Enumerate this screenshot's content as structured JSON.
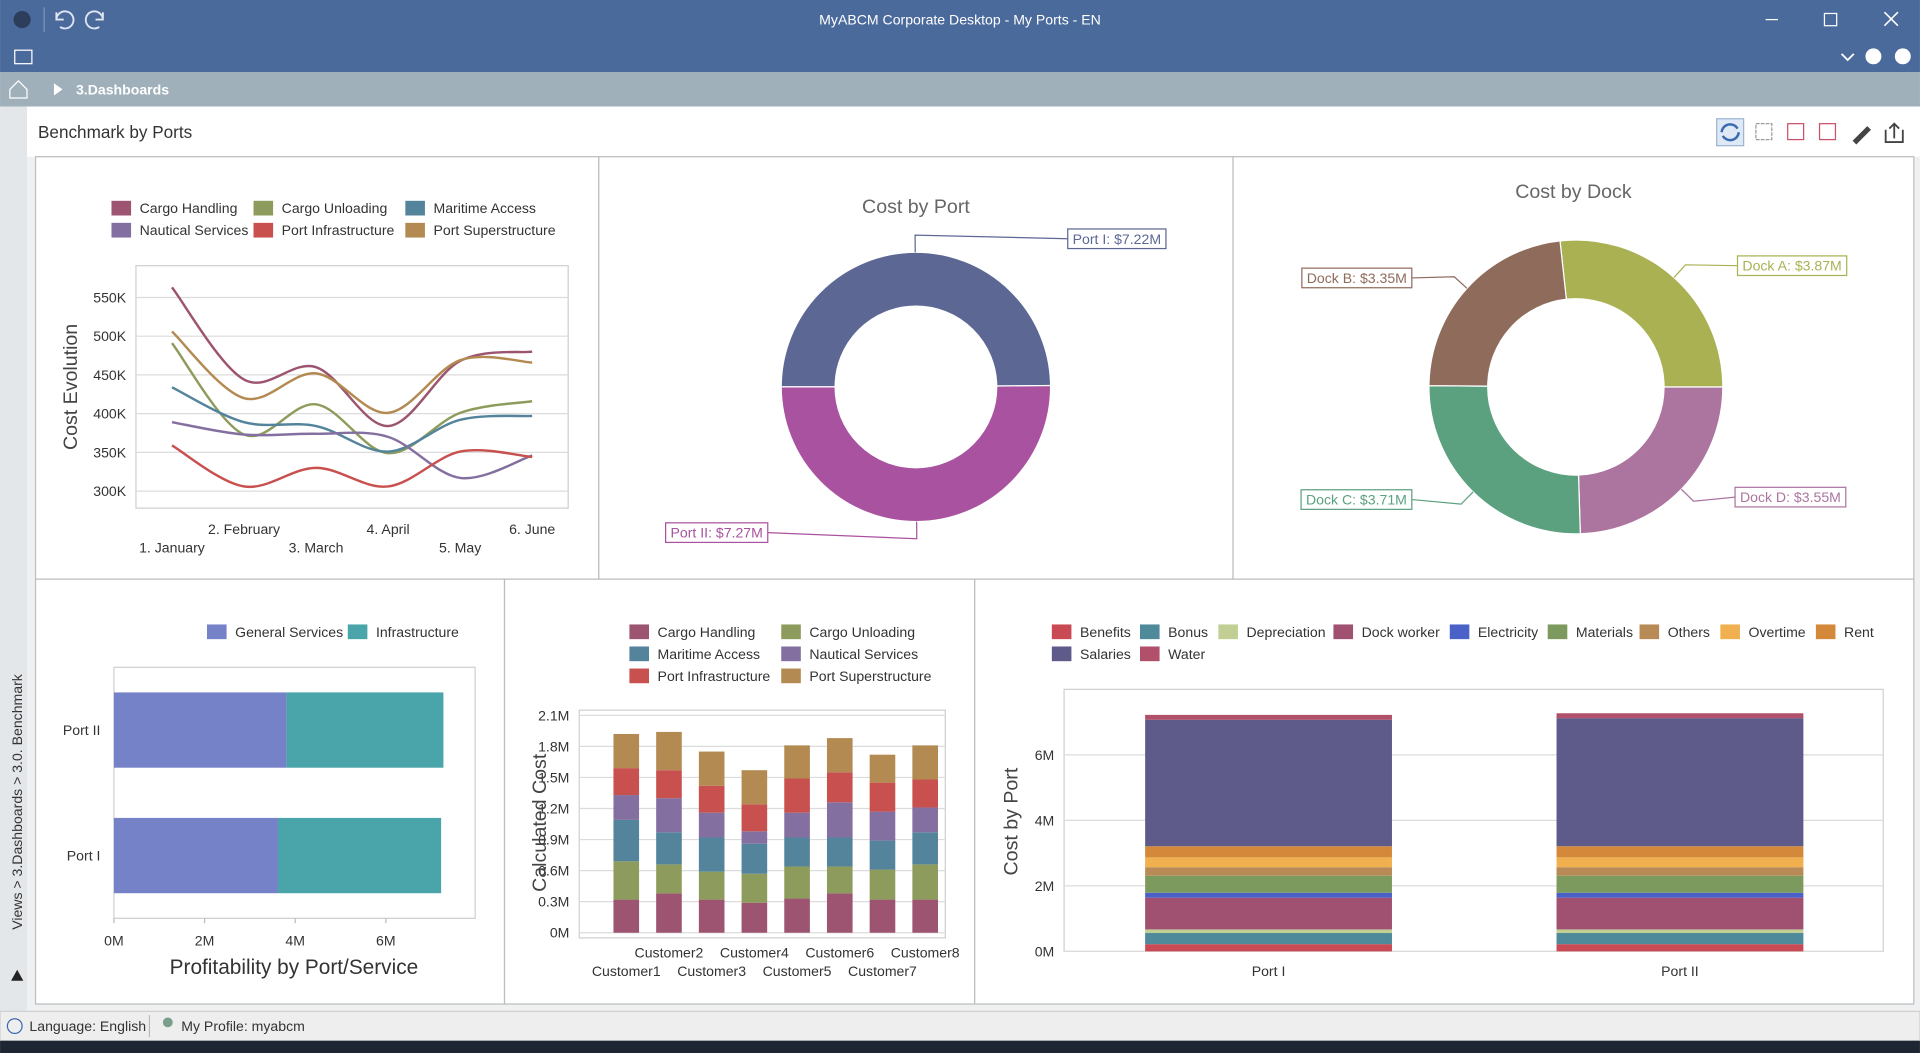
{
  "window": {
    "title": "MyABCM Corporate Desktop - My Ports - EN"
  },
  "breadcrumb": "3.Dashboards",
  "side_path": "Views > 3.Dashboards > 3.0. Benchmark",
  "dashboard_title": "Benchmark by Ports",
  "status_bar": {
    "language": "Language: English",
    "profile": "My Profile: myabcm"
  },
  "chart_data": [
    {
      "type": "line",
      "y_label": "Cost Evolution",
      "legend": "top",
      "grid": true,
      "categories": [
        "1. January",
        "2. February",
        "3. March",
        "4. April",
        "5. May",
        "6. June"
      ],
      "series": [
        {
          "name": "Cargo Handling",
          "color": "#9c5470",
          "values": [
            563,
            444,
            460,
            384,
            468,
            480
          ]
        },
        {
          "name": "Cargo Unloading",
          "color": "#8d9c5c",
          "values": [
            491,
            373,
            412,
            349,
            401,
            416
          ]
        },
        {
          "name": "Maritime Access",
          "color": "#54849c",
          "values": [
            434,
            389,
            384,
            351,
            392,
            397
          ]
        },
        {
          "name": "Nautical Services",
          "color": "#8470a0",
          "values": [
            389,
            373,
            374,
            370,
            317,
            346
          ]
        },
        {
          "name": "Port Infrastructure",
          "color": "#c8504e",
          "values": [
            359,
            306,
            330,
            306,
            351,
            344
          ]
        },
        {
          "name": "Port Superstructure",
          "color": "#b38a52",
          "values": [
            506,
            420,
            452,
            401,
            469,
            466
          ]
        }
      ],
      "ylim": [
        278,
        591
      ],
      "yticks": [
        {
          "value": 300,
          "label": "300K"
        },
        {
          "value": 350,
          "label": "350K"
        },
        {
          "value": 400,
          "label": "400K"
        },
        {
          "value": 450,
          "label": "450K"
        },
        {
          "value": 500,
          "label": "500K"
        },
        {
          "value": 550,
          "label": "550K"
        }
      ]
    },
    {
      "type": "donut",
      "title": "Cost by Port",
      "categories": [
        "Port I",
        "Port II"
      ],
      "values": [
        7.22,
        7.27
      ],
      "value_labels": [
        "Port I: $7.22M",
        "Port II: $7.27M"
      ],
      "colors": [
        "#5c6794",
        "#a9529f"
      ]
    },
    {
      "type": "donut",
      "title": "Cost by Dock",
      "categories": [
        "Dock A",
        "Dock D",
        "Dock C",
        "Dock B"
      ],
      "values": [
        3.87,
        3.55,
        3.71,
        3.35
      ],
      "value_labels": [
        "Dock A: $3.87M",
        "Dock D: $3.55M",
        "Dock C: $3.71M",
        "Dock B: $3.35M"
      ],
      "colors": [
        "#a9b152",
        "#ab759f",
        "#5ba07f",
        "#8f6b5c"
      ]
    },
    {
      "type": "bar",
      "orientation": "horizontal",
      "stacked": true,
      "grid": false,
      "legend": "top-right",
      "title": "Profitability by Port/Service",
      "categories": [
        "Port I",
        "Port II"
      ],
      "series": [
        {
          "name": "General Services",
          "color": "#7682c8",
          "values": [
            3.62,
            3.81
          ]
        },
        {
          "name": "Infrastructure",
          "color": "#4aa5aa",
          "values": [
            3.6,
            3.46
          ]
        }
      ],
      "xlim": [
        0,
        7.97
      ],
      "xticks": [
        {
          "value": 0,
          "label": "0M"
        },
        {
          "value": 2,
          "label": "2M"
        },
        {
          "value": 4,
          "label": "4M"
        },
        {
          "value": 6,
          "label": "6M"
        }
      ]
    },
    {
      "type": "bar",
      "stacked": true,
      "grid": true,
      "legend": "top",
      "y_label": "Calculated Cost",
      "categories": [
        "Customer1",
        "Customer2",
        "Customer3",
        "Customer4",
        "Customer5",
        "Customer6",
        "Customer7",
        "Customer8"
      ],
      "series": [
        {
          "name": "Cargo Handling",
          "color": "#9c5470",
          "values": [
            0.32,
            0.38,
            0.32,
            0.29,
            0.33,
            0.38,
            0.32,
            0.32
          ]
        },
        {
          "name": "Cargo Unloading",
          "color": "#8d9c5c",
          "values": [
            0.37,
            0.28,
            0.27,
            0.28,
            0.31,
            0.26,
            0.29,
            0.34
          ]
        },
        {
          "name": "Maritime Access",
          "color": "#54849c",
          "values": [
            0.4,
            0.31,
            0.33,
            0.29,
            0.28,
            0.28,
            0.28,
            0.31
          ]
        },
        {
          "name": "Nautical Services",
          "color": "#8470a0",
          "values": [
            0.24,
            0.33,
            0.24,
            0.12,
            0.24,
            0.34,
            0.28,
            0.24
          ]
        },
        {
          "name": "Port Infrastructure",
          "color": "#c8504e",
          "values": [
            0.26,
            0.27,
            0.26,
            0.26,
            0.33,
            0.29,
            0.28,
            0.27
          ]
        },
        {
          "name": "Port Superstructure",
          "color": "#b38a52",
          "values": [
            0.33,
            0.37,
            0.33,
            0.33,
            0.32,
            0.33,
            0.27,
            0.33
          ]
        }
      ],
      "ylim": [
        -0.05,
        2.15
      ],
      "yticks": [
        {
          "value": 0,
          "label": "0M"
        },
        {
          "value": 0.3,
          "label": "0.3M"
        },
        {
          "value": 0.6,
          "label": "0.6M"
        },
        {
          "value": 0.9,
          "label": "0.9M"
        },
        {
          "value": 1.2,
          "label": "1.2M"
        },
        {
          "value": 1.5,
          "label": "1.5M"
        },
        {
          "value": 1.8,
          "label": "1.8M"
        },
        {
          "value": 2.1,
          "label": "2.1M"
        }
      ]
    },
    {
      "type": "bar",
      "stacked": true,
      "grid": true,
      "legend": "top",
      "y_label": "Cost by Port",
      "categories": [
        "Port I",
        "Port II"
      ],
      "series": [
        {
          "name": "Benefits",
          "color": "#c94a55",
          "values": [
            0.22,
            0.22
          ]
        },
        {
          "name": "Bonus",
          "color": "#4e8a99",
          "values": [
            0.34,
            0.34
          ]
        },
        {
          "name": "Depreciation",
          "color": "#c2cf94",
          "values": [
            0.11,
            0.11
          ]
        },
        {
          "name": "Dock worker",
          "color": "#a05070",
          "values": [
            0.97,
            0.97
          ]
        },
        {
          "name": "Electricity",
          "color": "#4a62c8",
          "values": [
            0.15,
            0.15
          ]
        },
        {
          "name": "Materials",
          "color": "#7d9a5e",
          "values": [
            0.52,
            0.52
          ]
        },
        {
          "name": "Others",
          "color": "#b88a55",
          "values": [
            0.26,
            0.26
          ]
        },
        {
          "name": "Overtime",
          "color": "#f0b050",
          "values": [
            0.3,
            0.3
          ]
        },
        {
          "name": "Rent",
          "color": "#d4883a",
          "values": [
            0.34,
            0.34
          ]
        },
        {
          "name": "Salaries",
          "color": "#5e5a8a",
          "values": [
            3.86,
            3.91
          ]
        },
        {
          "name": "Water",
          "color": "#b0506a",
          "values": [
            0.15,
            0.15
          ]
        }
      ],
      "ylim": [
        0,
        8
      ],
      "yticks": [
        {
          "value": 0,
          "label": "0M"
        },
        {
          "value": 2,
          "label": "2M"
        },
        {
          "value": 4,
          "label": "4M"
        },
        {
          "value": 6,
          "label": "6M"
        }
      ]
    }
  ]
}
